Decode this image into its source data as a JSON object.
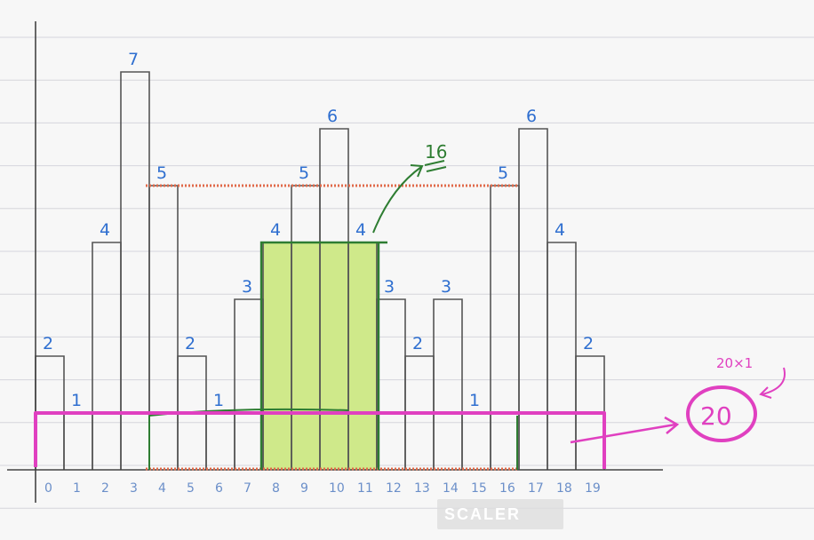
{
  "chart_data": {
    "type": "bar",
    "categories": [
      "0",
      "1",
      "2",
      "3",
      "4",
      "5",
      "6",
      "7",
      "8",
      "9",
      "10",
      "11",
      "12",
      "13",
      "14",
      "15",
      "16",
      "17",
      "18",
      "19"
    ],
    "values": [
      2,
      1,
      4,
      7,
      5,
      2,
      1,
      3,
      4,
      5,
      6,
      4,
      3,
      2,
      3,
      1,
      5,
      6,
      4,
      2
    ],
    "ylim": [
      0,
      8
    ],
    "grid": true
  },
  "annotations": {
    "area_16": "16",
    "answer": "20",
    "answer_note": "20×1"
  },
  "highlight": {
    "area16_range": [
      8,
      11
    ],
    "area16_height": 4,
    "area16_color": "#cfe98a",
    "outline_color": "#2e7d32",
    "dotted_level": 5,
    "dotted_range": [
      4,
      16
    ],
    "dotted_color": "#e06a4a",
    "min_line_color": "#e040c0"
  },
  "watermark": {
    "text": "SCALER"
  }
}
